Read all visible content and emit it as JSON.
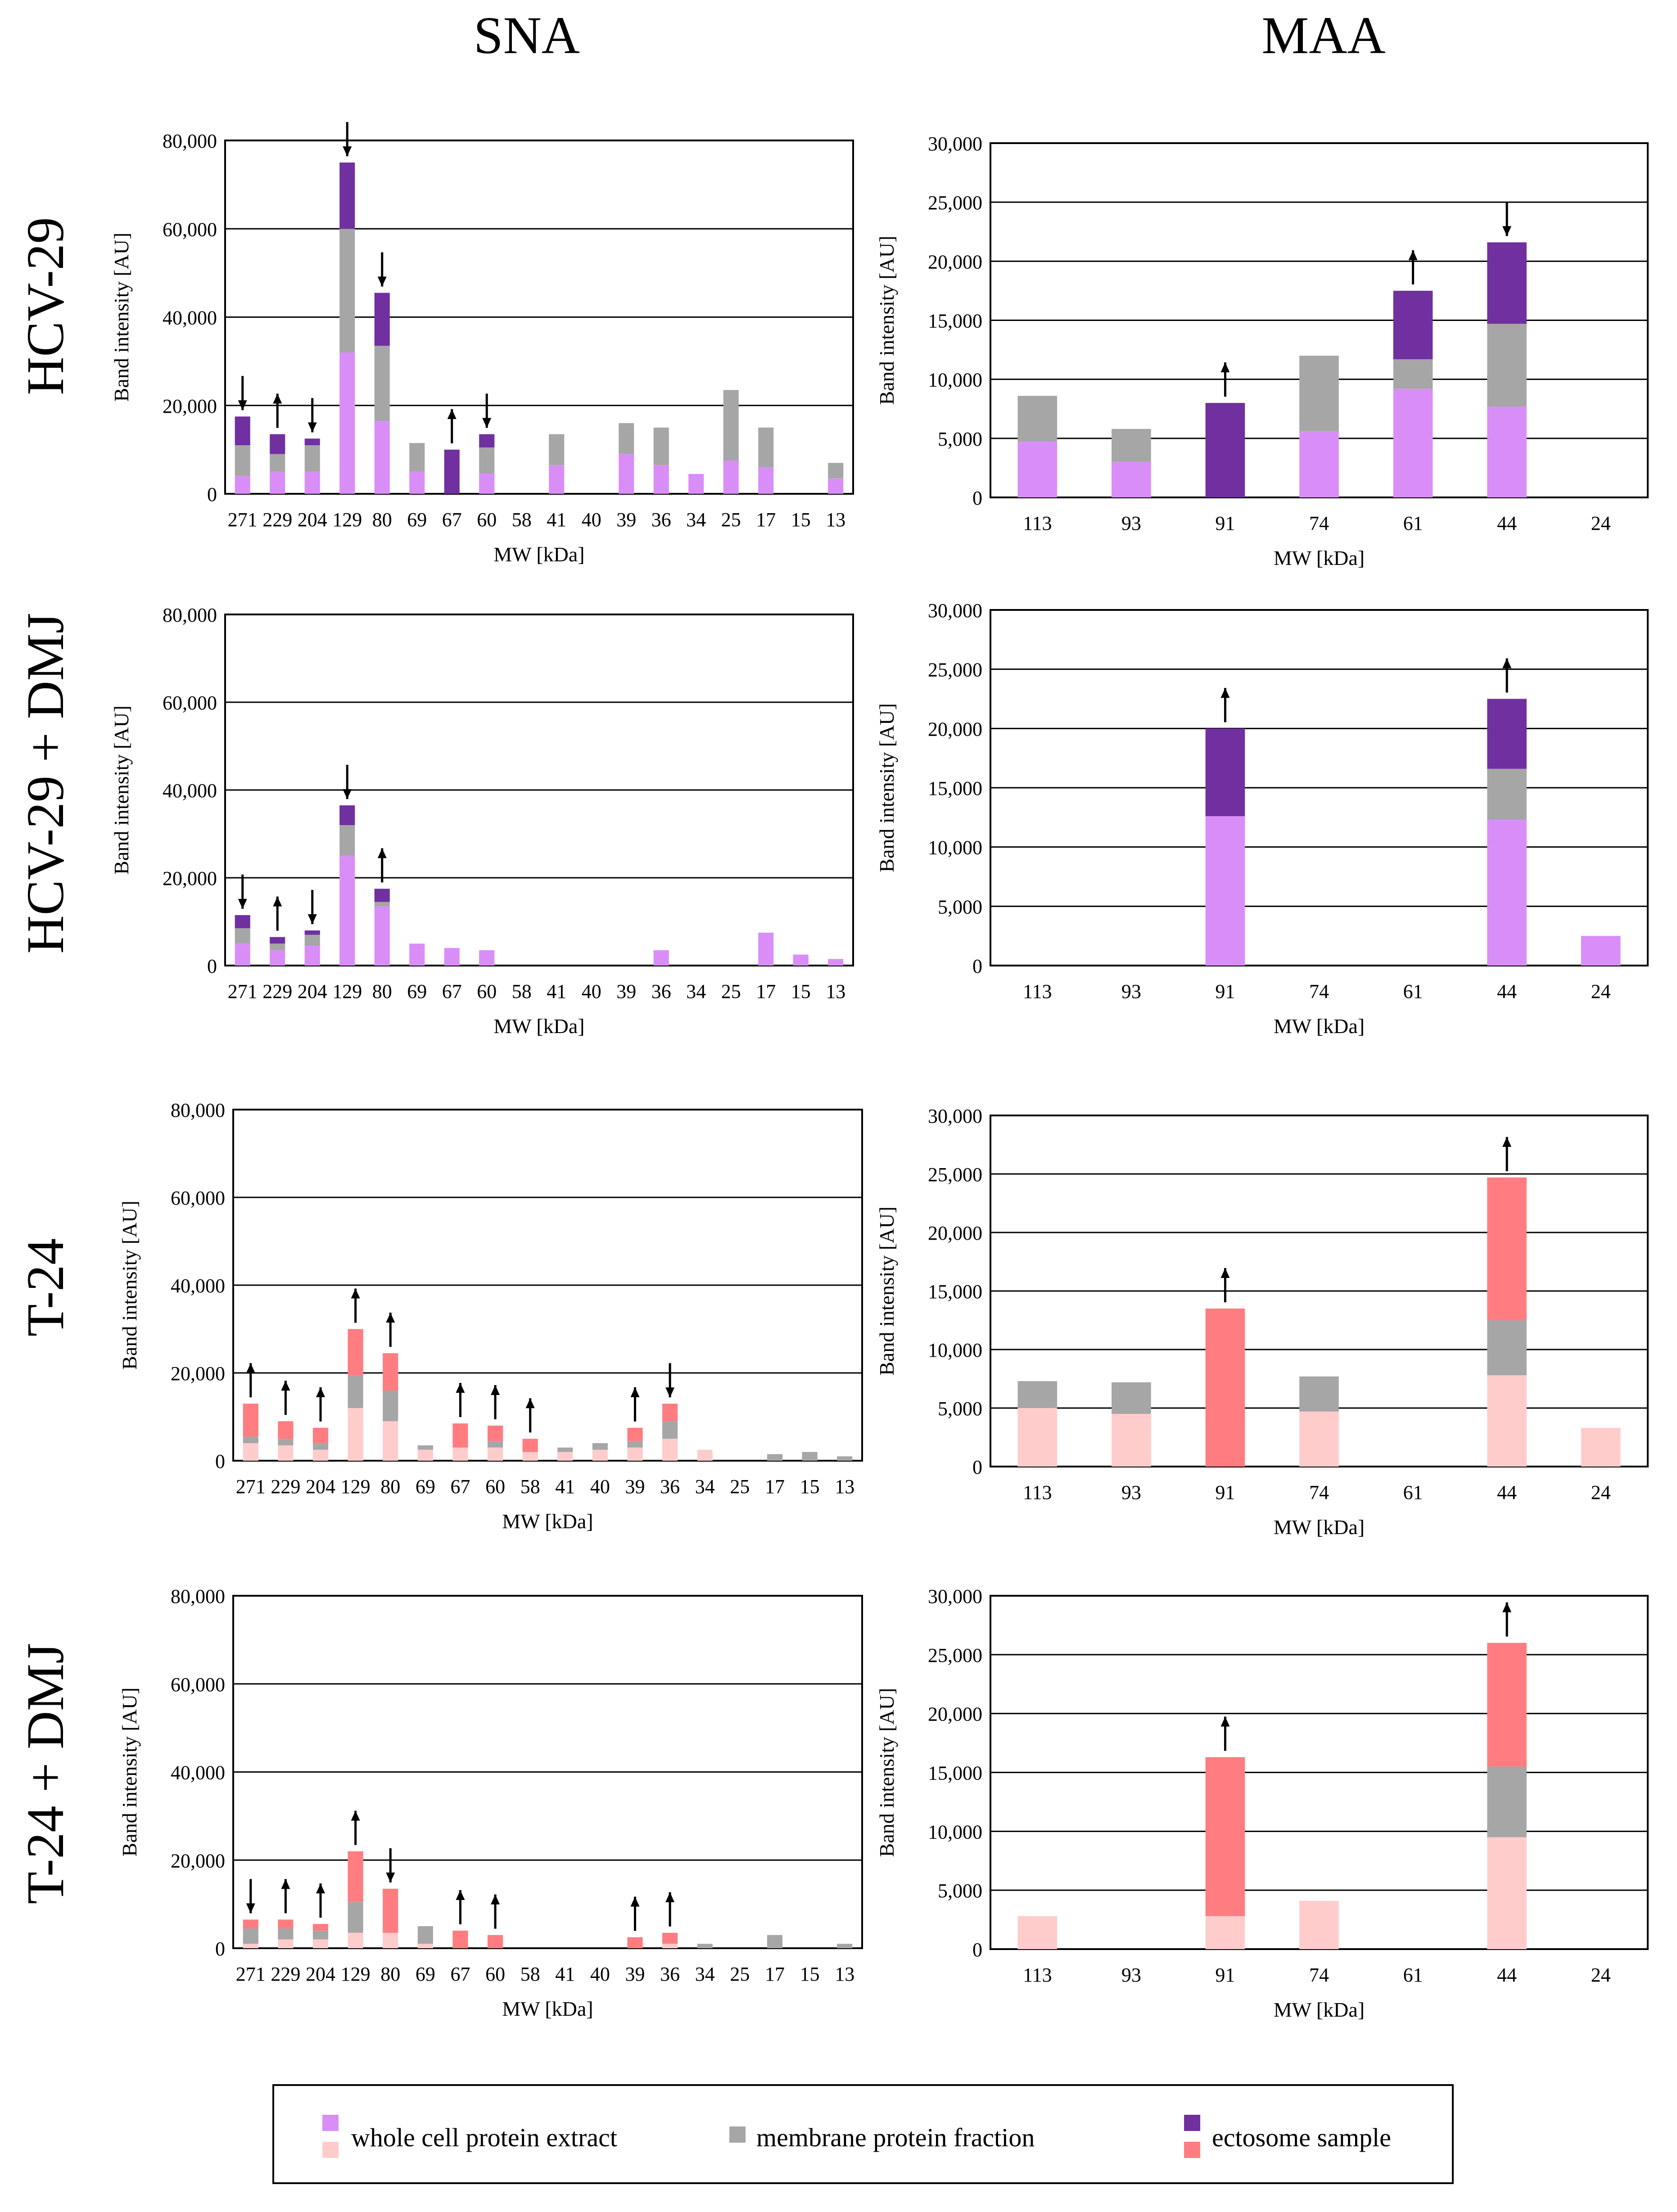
{
  "column_titles": [
    "SNA",
    "MAA"
  ],
  "row_titles": [
    "HCV-29",
    "HCV-29 + DMJ",
    "T-24",
    "T-24 + DMJ"
  ],
  "colors": {
    "hcv_whole": "#d98ef7",
    "hcv_membrane": "#a6a6a6",
    "hcv_ectosome": "#7030a0",
    "t24_whole": "#ffcccc",
    "t24_membrane": "#a6a6a6",
    "t24_ectosome": "#ff7c80",
    "grid": "#000000",
    "legend_membrane": "#a6a6a6"
  },
  "legend": {
    "items": [
      {
        "label": "whole cell protein extract",
        "colors": [
          "#d98ef7",
          "#ffcccc"
        ]
      },
      {
        "label": "membrane protein fraction",
        "colors": [
          "#a6a6a6"
        ]
      },
      {
        "label": "ectosome sample",
        "colors": [
          "#7030a0",
          "#ff7c80"
        ]
      }
    ]
  },
  "chart_data": [
    {
      "type": "bar",
      "stacked": true,
      "lectin": "SNA",
      "cell": "HCV-29",
      "palette": "hcv",
      "xlabel": "MW [kDa]",
      "ylabel": "Band intensity [AU]",
      "ylim": [
        0,
        80000
      ],
      "yticks": [
        "0",
        "20,000",
        "40,000",
        "60,000",
        "80,000"
      ],
      "ytick_values": [
        0,
        20000,
        40000,
        60000,
        80000
      ],
      "categories": [
        "271",
        "229",
        "204",
        "129",
        "80",
        "69",
        "67",
        "60",
        "58",
        "41",
        "40",
        "39",
        "36",
        "34",
        "25",
        "17",
        "15",
        "13"
      ],
      "series": [
        {
          "name": "whole cell protein extract",
          "values": [
            4000,
            5000,
            5000,
            32000,
            16500,
            5000,
            0,
            4500,
            0,
            6500,
            0,
            9000,
            6500,
            4500,
            7500,
            6000,
            0,
            3500
          ]
        },
        {
          "name": "membrane protein fraction",
          "values": [
            7000,
            4000,
            6000,
            28000,
            17000,
            6500,
            0,
            6000,
            0,
            7000,
            0,
            7000,
            8500,
            0,
            16000,
            9000,
            0,
            3500
          ]
        },
        {
          "name": "ectosome sample",
          "values": [
            6500,
            4500,
            1500,
            15000,
            12000,
            0,
            10000,
            3000,
            0,
            0,
            0,
            0,
            0,
            0,
            0,
            0,
            0,
            0
          ]
        }
      ],
      "arrows": {
        "271": "down",
        "229": "up",
        "204": "down",
        "129": "down",
        "80": "down",
        "67": "up",
        "60": "down"
      }
    },
    {
      "type": "bar",
      "stacked": true,
      "lectin": "MAA",
      "cell": "HCV-29",
      "palette": "hcv",
      "xlabel": "MW [kDa]",
      "ylabel": "Band intensity [AU]",
      "ylim": [
        0,
        30000
      ],
      "yticks": [
        "0",
        "5,000",
        "10,000",
        "15,000",
        "20,000",
        "25,000",
        "30,000"
      ],
      "ytick_values": [
        0,
        5000,
        10000,
        15000,
        20000,
        25000,
        30000
      ],
      "categories": [
        "113",
        "93",
        "91",
        "74",
        "61",
        "44",
        "24"
      ],
      "series": [
        {
          "name": "whole cell protein extract",
          "values": [
            4700,
            3000,
            0,
            5600,
            9200,
            7700,
            0
          ]
        },
        {
          "name": "membrane protein fraction",
          "values": [
            3900,
            2800,
            0,
            6400,
            2500,
            7000,
            0
          ]
        },
        {
          "name": "ectosome sample",
          "values": [
            0,
            0,
            8000,
            0,
            5800,
            6900,
            0
          ]
        }
      ],
      "arrows": {
        "91": "up",
        "61": "up",
        "44": "down"
      }
    },
    {
      "type": "bar",
      "stacked": true,
      "lectin": "SNA",
      "cell": "HCV-29 + DMJ",
      "palette": "hcv",
      "xlabel": "MW [kDa]",
      "ylabel": "Band intensity [AU]",
      "ylim": [
        0,
        80000
      ],
      "yticks": [
        "0",
        "20,000",
        "40,000",
        "60,000",
        "80,000"
      ],
      "ytick_values": [
        0,
        20000,
        40000,
        60000,
        80000
      ],
      "categories": [
        "271",
        "229",
        "204",
        "129",
        "80",
        "69",
        "67",
        "60",
        "58",
        "41",
        "40",
        "39",
        "36",
        "34",
        "25",
        "17",
        "15",
        "13"
      ],
      "series": [
        {
          "name": "whole cell protein extract",
          "values": [
            5000,
            3500,
            4500,
            25000,
            13500,
            5000,
            4000,
            3500,
            0,
            0,
            0,
            0,
            3500,
            0,
            0,
            7500,
            2500,
            1500
          ]
        },
        {
          "name": "membrane protein fraction",
          "values": [
            3500,
            1500,
            2500,
            7000,
            1000,
            0,
            0,
            0,
            0,
            0,
            0,
            0,
            0,
            0,
            0,
            0,
            0,
            0
          ]
        },
        {
          "name": "ectosome sample",
          "values": [
            3000,
            1500,
            1000,
            4500,
            3000,
            0,
            0,
            0,
            0,
            0,
            0,
            0,
            0,
            0,
            0,
            0,
            0,
            0
          ]
        }
      ],
      "arrows": {
        "271": "down",
        "229": "up",
        "204": "down",
        "129": "down",
        "80": "up"
      }
    },
    {
      "type": "bar",
      "stacked": true,
      "lectin": "MAA",
      "cell": "HCV-29 + DMJ",
      "palette": "hcv",
      "xlabel": "MW [kDa]",
      "ylabel": "Band intensity [AU]",
      "ylim": [
        0,
        30000
      ],
      "yticks": [
        "0",
        "5,000",
        "10,000",
        "15,000",
        "20,000",
        "25,000",
        "30,000"
      ],
      "ytick_values": [
        0,
        5000,
        10000,
        15000,
        20000,
        25000,
        30000
      ],
      "categories": [
        "113",
        "93",
        "91",
        "74",
        "61",
        "44",
        "24"
      ],
      "series": [
        {
          "name": "whole cell protein extract",
          "values": [
            0,
            0,
            12600,
            0,
            0,
            12300,
            2500
          ]
        },
        {
          "name": "membrane protein fraction",
          "values": [
            0,
            0,
            0,
            0,
            0,
            4300,
            0
          ]
        },
        {
          "name": "ectosome sample",
          "values": [
            0,
            0,
            7400,
            0,
            0,
            5900,
            0
          ]
        }
      ],
      "arrows": {
        "91": "up",
        "44": "up"
      }
    },
    {
      "type": "bar",
      "stacked": true,
      "lectin": "SNA",
      "cell": "T-24",
      "palette": "t24",
      "xlabel": "MW [kDa]",
      "ylabel": "Band intensity [AU]",
      "ylim": [
        0,
        80000
      ],
      "yticks": [
        "0",
        "20,000",
        "40,000",
        "60,000",
        "80,000"
      ],
      "ytick_values": [
        0,
        20000,
        40000,
        60000,
        80000
      ],
      "categories": [
        "271",
        "229",
        "204",
        "129",
        "80",
        "69",
        "67",
        "60",
        "58",
        "41",
        "40",
        "39",
        "36",
        "34",
        "25",
        "17",
        "15",
        "13"
      ],
      "series": [
        {
          "name": "whole cell protein extract",
          "values": [
            4000,
            3500,
            2500,
            12000,
            9000,
            2500,
            3000,
            3000,
            2000,
            2000,
            2500,
            3000,
            5000,
            2500,
            0,
            0,
            0,
            0
          ]
        },
        {
          "name": "membrane protein fraction",
          "values": [
            1500,
            1500,
            1500,
            7500,
            7000,
            1000,
            0,
            1500,
            0,
            1000,
            1500,
            1500,
            4000,
            0,
            0,
            1500,
            2000,
            1000
          ]
        },
        {
          "name": "ectosome sample",
          "values": [
            7500,
            4000,
            3500,
            10500,
            8500,
            0,
            5500,
            3500,
            3000,
            0,
            0,
            3000,
            4000,
            0,
            0,
            0,
            0,
            0
          ]
        }
      ],
      "arrows": {
        "271": "up",
        "229": "up",
        "204": "up",
        "129": "up",
        "80": "up",
        "67": "up",
        "60": "up",
        "58": "up",
        "39": "up",
        "36": "down"
      }
    },
    {
      "type": "bar",
      "stacked": true,
      "lectin": "MAA",
      "cell": "T-24",
      "palette": "t24",
      "xlabel": "MW [kDa]",
      "ylabel": "Band intensity [AU]",
      "ylim": [
        0,
        30000
      ],
      "yticks": [
        "0",
        "5,000",
        "10,000",
        "15,000",
        "20,000",
        "25,000",
        "30,000"
      ],
      "ytick_values": [
        0,
        5000,
        10000,
        15000,
        20000,
        25000,
        30000
      ],
      "categories": [
        "113",
        "93",
        "91",
        "74",
        "61",
        "44",
        "24"
      ],
      "series": [
        {
          "name": "whole cell protein extract",
          "values": [
            5000,
            4500,
            0,
            4700,
            0,
            7800,
            3300
          ]
        },
        {
          "name": "membrane protein fraction",
          "values": [
            2300,
            2700,
            0,
            3000,
            0,
            4700,
            0
          ]
        },
        {
          "name": "ectosome sample",
          "values": [
            0,
            0,
            13500,
            0,
            0,
            12200,
            0
          ]
        }
      ],
      "arrows": {
        "91": "up",
        "44": "up"
      }
    },
    {
      "type": "bar",
      "stacked": true,
      "lectin": "SNA",
      "cell": "T-24 + DMJ",
      "palette": "t24",
      "xlabel": "MW [kDa]",
      "ylabel": "Band intensity [AU]",
      "ylim": [
        0,
        80000
      ],
      "yticks": [
        "0",
        "20,000",
        "40,000",
        "60,000",
        "80,000"
      ],
      "ytick_values": [
        0,
        20000,
        40000,
        60000,
        80000
      ],
      "categories": [
        "271",
        "229",
        "204",
        "129",
        "80",
        "69",
        "67",
        "60",
        "58",
        "41",
        "40",
        "39",
        "36",
        "34",
        "25",
        "17",
        "15",
        "13"
      ],
      "series": [
        {
          "name": "whole cell protein extract",
          "values": [
            1000,
            2000,
            2000,
            3500,
            3500,
            1000,
            0,
            0,
            0,
            0,
            0,
            0,
            1000,
            0,
            0,
            0,
            0,
            0
          ]
        },
        {
          "name": "membrane protein fraction",
          "values": [
            3500,
            2500,
            2000,
            7000,
            0,
            4000,
            0,
            0,
            0,
            0,
            0,
            0,
            0,
            1000,
            0,
            3000,
            0,
            1000
          ]
        },
        {
          "name": "ectosome sample",
          "values": [
            2000,
            2000,
            1500,
            11500,
            10000,
            0,
            4000,
            3000,
            0,
            0,
            0,
            2500,
            2500,
            0,
            0,
            0,
            0,
            0
          ]
        }
      ],
      "arrows": {
        "271": "down",
        "229": "up",
        "204": "up",
        "129": "up",
        "80": "down",
        "67": "up",
        "60": "up",
        "39": "up",
        "36": "up"
      }
    },
    {
      "type": "bar",
      "stacked": true,
      "lectin": "MAA",
      "cell": "T-24 + DMJ",
      "palette": "t24",
      "xlabel": "MW [kDa]",
      "ylabel": "Band intensity [AU]",
      "ylim": [
        0,
        30000
      ],
      "yticks": [
        "0",
        "5,000",
        "10,000",
        "15,000",
        "20,000",
        "25,000",
        "30,000"
      ],
      "ytick_values": [
        0,
        5000,
        10000,
        15000,
        20000,
        25000,
        30000
      ],
      "categories": [
        "113",
        "93",
        "91",
        "74",
        "61",
        "44",
        "24"
      ],
      "series": [
        {
          "name": "whole cell protein extract",
          "values": [
            2800,
            0,
            2800,
            4100,
            0,
            9500,
            0
          ]
        },
        {
          "name": "membrane protein fraction",
          "values": [
            0,
            0,
            0,
            0,
            0,
            6000,
            0
          ]
        },
        {
          "name": "ectosome sample",
          "values": [
            0,
            0,
            13500,
            0,
            0,
            10500,
            0
          ]
        }
      ],
      "arrows": {
        "91": "up",
        "44": "up"
      }
    }
  ]
}
